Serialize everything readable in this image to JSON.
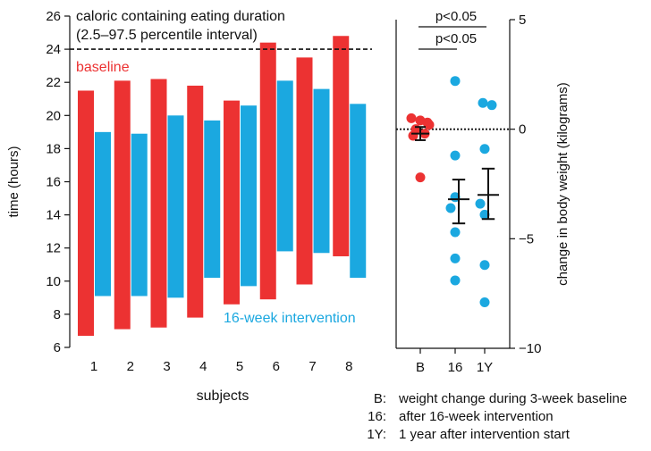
{
  "chart_data": [
    {
      "type": "bar",
      "title": "caloric containing eating duration",
      "subtitle": "(2.5–97.5 percentile interval)",
      "xlabel": "subjects",
      "ylabel": "time (hours)",
      "ylim": [
        6,
        26
      ],
      "yticks": [
        "6",
        "8",
        "10",
        "12",
        "14",
        "16",
        "18",
        "20",
        "22",
        "24",
        "26"
      ],
      "categories": [
        "1",
        "2",
        "3",
        "4",
        "5",
        "6",
        "7",
        "8"
      ],
      "reference_line": 24,
      "series": [
        {
          "name": "baseline",
          "color": "#ec3232",
          "low": [
            6.7,
            7.1,
            7.2,
            7.8,
            8.6,
            8.9,
            9.8,
            11.5
          ],
          "high": [
            21.5,
            22.1,
            22.2,
            21.8,
            20.9,
            24.4,
            23.5,
            24.8
          ]
        },
        {
          "name": "16-week intervention",
          "color": "#1ba8e0",
          "low": [
            9.1,
            9.1,
            9.0,
            10.2,
            9.7,
            11.8,
            11.7,
            10.2
          ],
          "high": [
            19.0,
            18.9,
            20.0,
            19.7,
            20.6,
            22.1,
            21.6,
            20.7
          ]
        }
      ]
    },
    {
      "type": "scatter",
      "ylabel": "change in body weight (kilograms)",
      "ylim": [
        -10,
        5
      ],
      "yticks": [
        "5",
        "0",
        "−5",
        "−10"
      ],
      "categories": [
        "B",
        "16",
        "1Y"
      ],
      "reference_line": 0,
      "significance": [
        {
          "from": "B",
          "to": "1Y",
          "label": "p<0.05"
        },
        {
          "from": "B",
          "to": "16",
          "label": "p<0.05"
        }
      ],
      "points": [
        {
          "group": "B",
          "values": [
            0.5,
            0.4,
            0.2,
            0.0,
            -0.2,
            -0.3,
            0.3,
            -2.2
          ],
          "color": "#ec3232"
        },
        {
          "group": "16",
          "values": [
            2.2,
            -1.2,
            -3.1,
            -3.6,
            -4.7,
            -5.9,
            -6.9
          ],
          "color": "#1ba8e0"
        },
        {
          "group": "1Y",
          "values": [
            1.2,
            1.1,
            -0.9,
            -3.4,
            -3.9,
            -6.2,
            -7.9
          ],
          "color": "#1ba8e0"
        }
      ],
      "summary": [
        {
          "group": "B",
          "mean": -0.2,
          "low": -0.5,
          "high": 0.1
        },
        {
          "group": "16",
          "mean": -3.2,
          "low": -4.3,
          "high": -2.3
        },
        {
          "group": "1Y",
          "mean": -3.0,
          "low": -4.1,
          "high": -1.8
        }
      ]
    }
  ],
  "legend": [
    {
      "key": "B:",
      "text": "weight change during 3-week baseline"
    },
    {
      "key": "16:",
      "text": "after 16-week intervention"
    },
    {
      "key": "1Y:",
      "text": "1 year after intervention start"
    }
  ]
}
